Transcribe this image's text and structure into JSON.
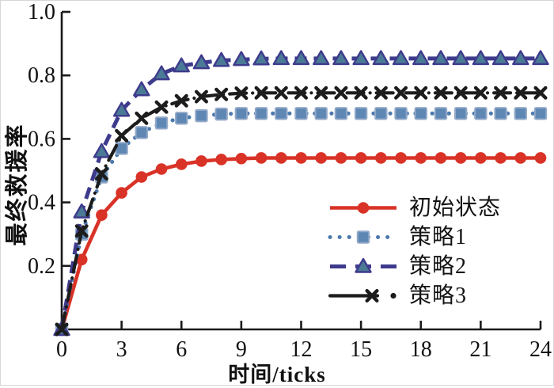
{
  "chart_data": {
    "type": "line",
    "title": "",
    "xlabel": "时间/ticks",
    "ylabel": "最终救援率",
    "xlim": [
      0,
      24
    ],
    "ylim": [
      0,
      1.0
    ],
    "xticks": [
      0,
      3,
      6,
      9,
      12,
      15,
      18,
      21,
      24
    ],
    "yticks": [
      0.2,
      0.4,
      0.6,
      0.8,
      1.0
    ],
    "ytick_labels": [
      "0.2",
      "0.4",
      "0.6",
      "0.8",
      "1.0"
    ],
    "grid": false,
    "legend_position": "inside-lower-right",
    "axis_color": "#1a1a1a",
    "x": [
      0,
      1,
      2,
      3,
      4,
      5,
      6,
      7,
      8,
      9,
      10,
      11,
      12,
      13,
      14,
      15,
      16,
      17,
      18,
      19,
      20,
      21,
      22,
      23,
      24
    ],
    "series": [
      {
        "name": "初始状态",
        "color": "#d93327",
        "marker": "circle",
        "marker_fill": "#d93327",
        "marker_stroke": "#d93327",
        "line_style": "solid",
        "values": [
          0,
          0.22,
          0.36,
          0.43,
          0.48,
          0.505,
          0.52,
          0.53,
          0.535,
          0.538,
          0.54,
          0.54,
          0.54,
          0.54,
          0.54,
          0.54,
          0.54,
          0.54,
          0.54,
          0.54,
          0.54,
          0.54,
          0.54,
          0.54,
          0.54
        ]
      },
      {
        "name": "策略1",
        "color": "#4d79ad",
        "marker": "square",
        "marker_fill": "#5e87b4",
        "marker_stroke": "#93a9c8",
        "line_style": "dotted",
        "values": [
          0,
          0.3,
          0.48,
          0.57,
          0.62,
          0.65,
          0.665,
          0.673,
          0.678,
          0.68,
          0.68,
          0.68,
          0.68,
          0.68,
          0.68,
          0.68,
          0.68,
          0.68,
          0.68,
          0.68,
          0.68,
          0.68,
          0.68,
          0.68,
          0.68
        ]
      },
      {
        "name": "策略2",
        "color": "#3e3a8c",
        "marker": "triangle",
        "marker_fill": "#4a7a96",
        "marker_stroke": "#3e3a8c",
        "line_style": "dashed",
        "values": [
          0,
          0.37,
          0.56,
          0.69,
          0.755,
          0.805,
          0.83,
          0.84,
          0.847,
          0.85,
          0.852,
          0.853,
          0.853,
          0.853,
          0.853,
          0.853,
          0.853,
          0.853,
          0.853,
          0.853,
          0.853,
          0.853,
          0.853,
          0.853,
          0.853
        ]
      },
      {
        "name": "策略3",
        "color": "#1c1c1c",
        "marker": "x",
        "marker_fill": "#1c1c1c",
        "marker_stroke": "#1c1c1c",
        "line_style": "dashdot",
        "values": [
          0,
          0.31,
          0.49,
          0.61,
          0.665,
          0.7,
          0.72,
          0.733,
          0.74,
          0.744,
          0.745,
          0.745,
          0.745,
          0.745,
          0.745,
          0.745,
          0.745,
          0.745,
          0.745,
          0.745,
          0.745,
          0.745,
          0.745,
          0.745,
          0.745
        ]
      }
    ]
  }
}
